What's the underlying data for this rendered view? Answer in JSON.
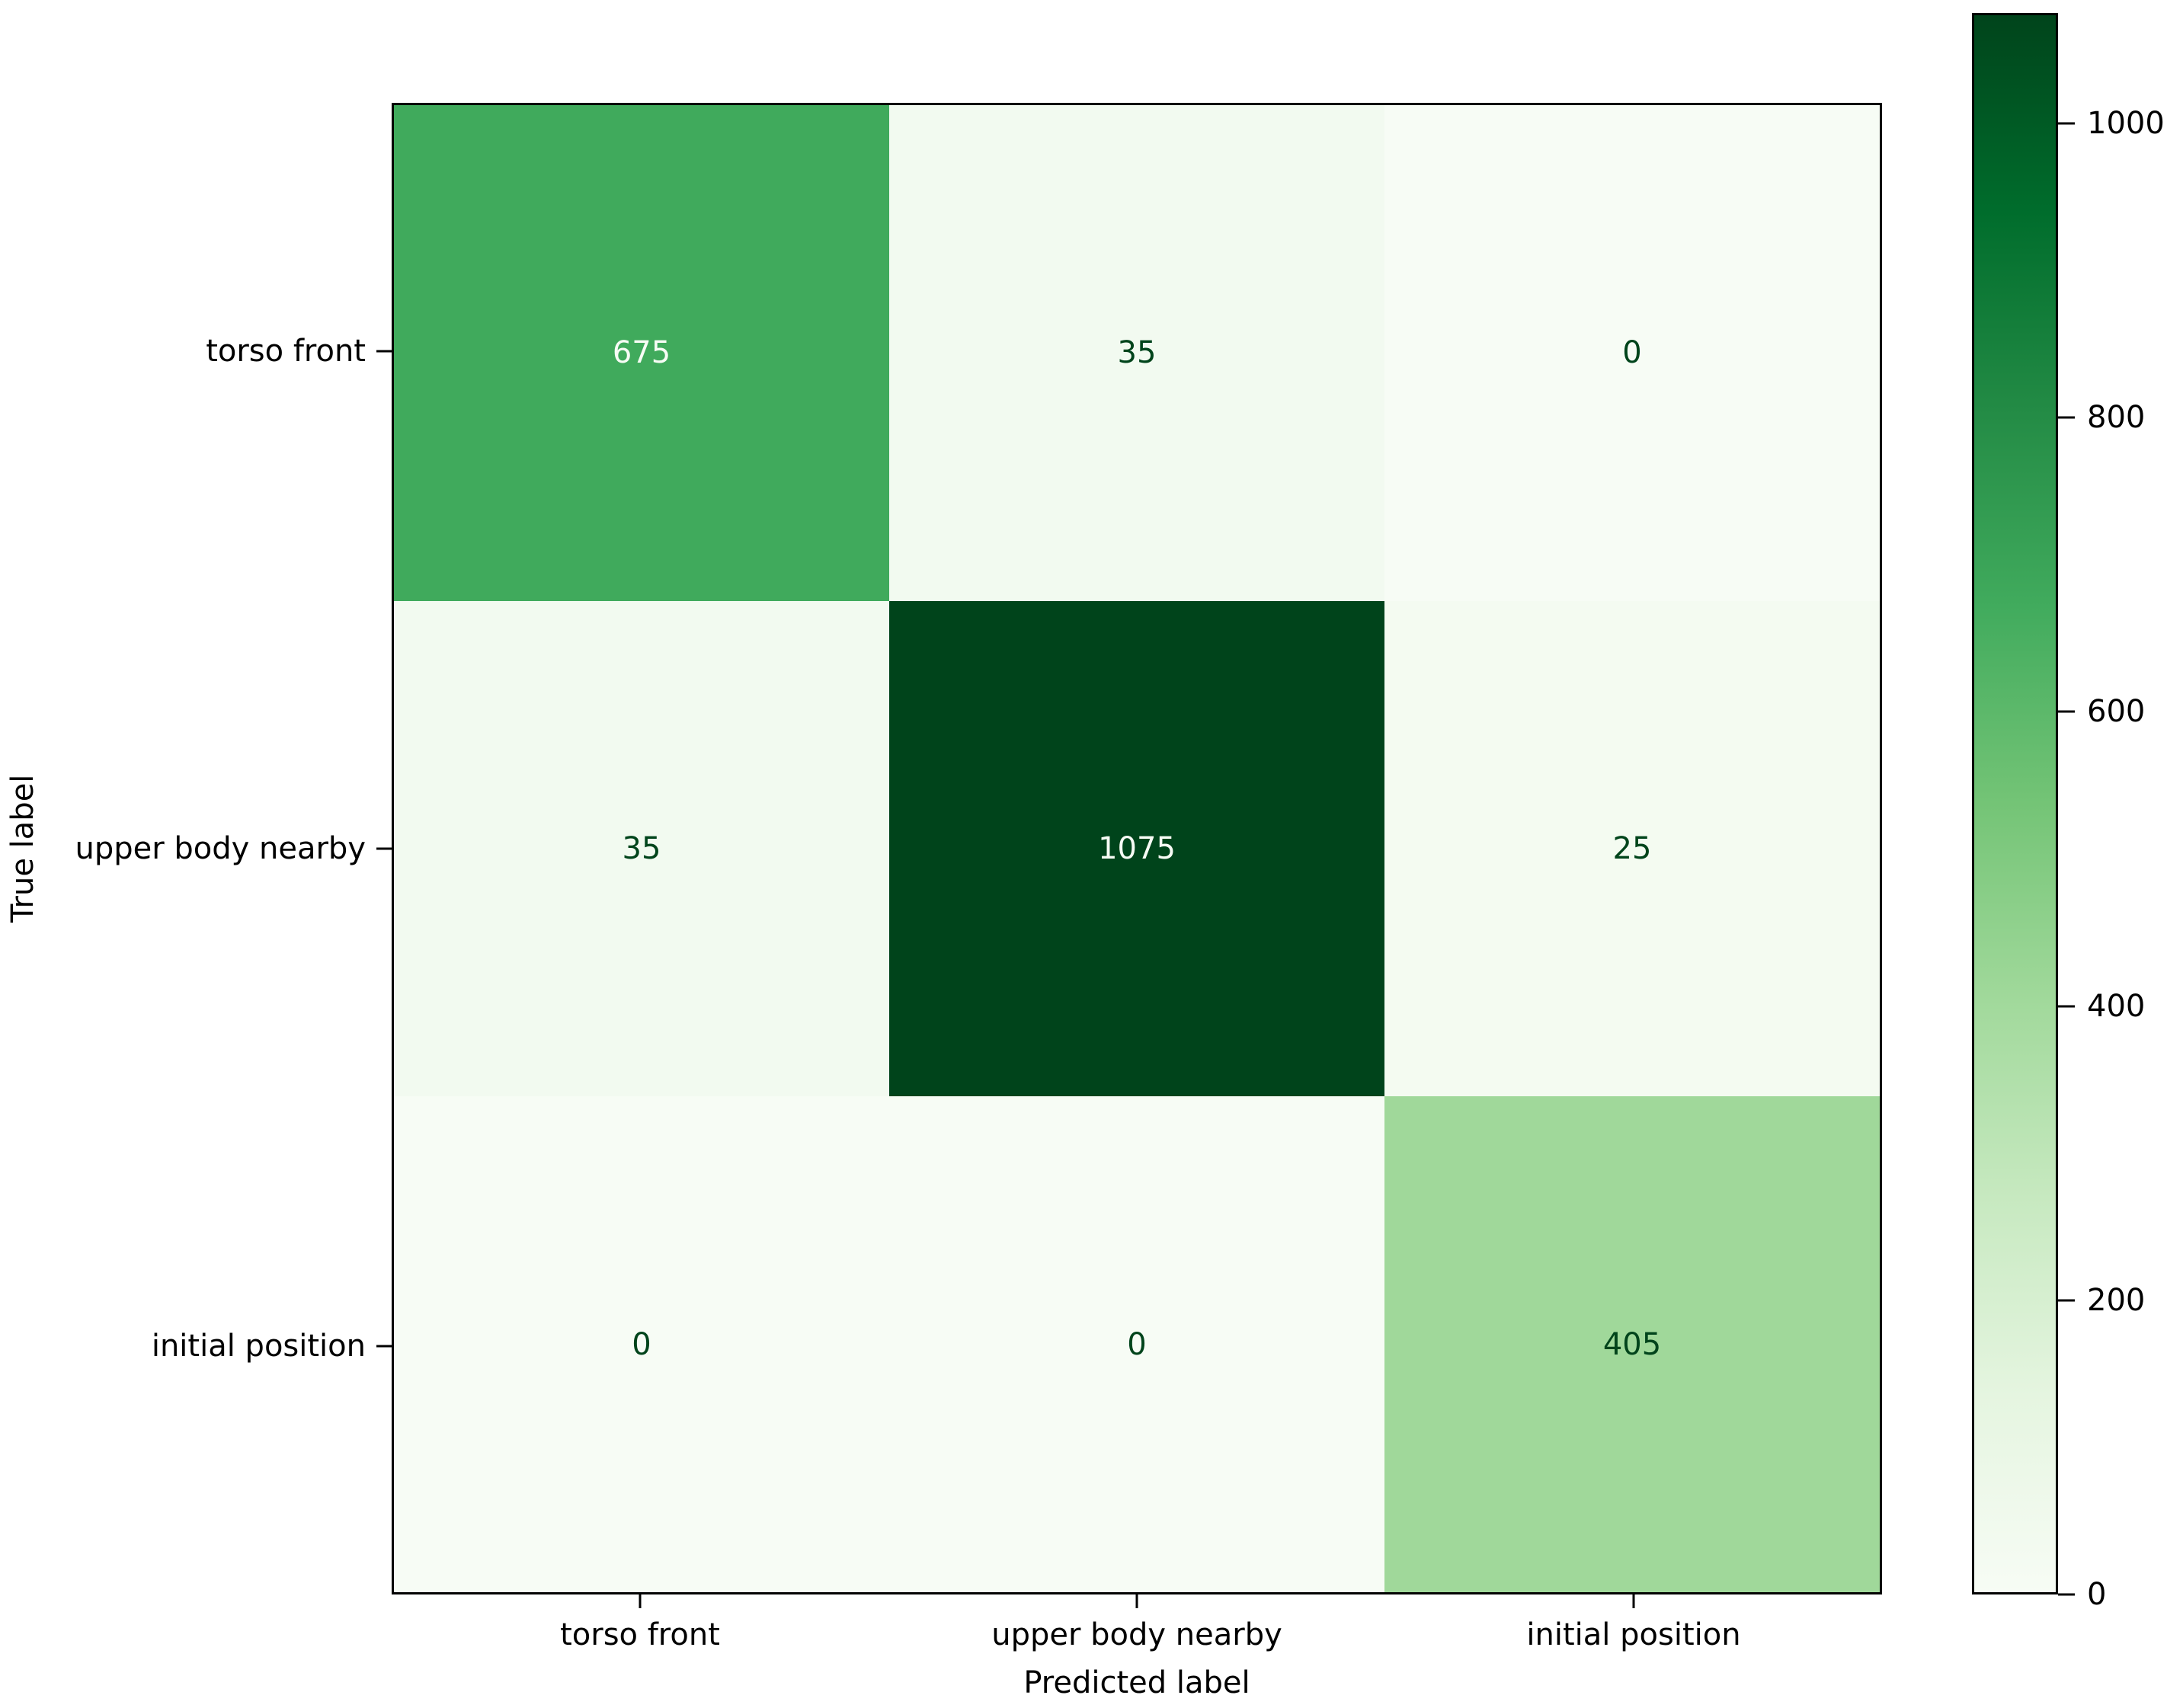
{
  "chart_data": {
    "type": "heatmap",
    "title": "",
    "xlabel": "Predicted label",
    "ylabel": "True label",
    "x_categories": [
      "torso front",
      "upper body nearby",
      "initial position"
    ],
    "y_categories": [
      "torso front",
      "upper body nearby",
      "initial position"
    ],
    "matrix": [
      [
        675,
        35,
        0
      ],
      [
        35,
        1075,
        25
      ],
      [
        0,
        0,
        405
      ]
    ],
    "vmin": 0,
    "vmax": 1075,
    "colormap": "Greens",
    "colorbar_ticks": [
      0,
      200,
      400,
      600,
      800,
      1000
    ],
    "legend_position": "colorbar-right",
    "grid": false,
    "cell_colors": [
      [
        "#40aa5c",
        "#f2faf0",
        "#f7fcf5"
      ],
      [
        "#f2faf0",
        "#00441b",
        "#f4fbf1"
      ],
      [
        "#f7fcf5",
        "#f7fcf5",
        "#a0d89a"
      ]
    ],
    "cell_text_colors": [
      [
        "#f7fcf5",
        "#00441b",
        "#00441b"
      ],
      [
        "#00441b",
        "#f7fcf5",
        "#00441b"
      ],
      [
        "#00441b",
        "#00441b",
        "#00441b"
      ]
    ],
    "gradient_stops": [
      "#f7fcf5",
      "#e5f5e0",
      "#c7e9c0",
      "#a1d99b",
      "#74c476",
      "#41ab5d",
      "#238b45",
      "#006d2c",
      "#00441b"
    ]
  },
  "colors": {
    "background": "#ffffff",
    "spine": "#000000",
    "tick_label": "#000000",
    "accent_dark_green": "#00441b",
    "accent_light_green": "#f7fcf5"
  }
}
